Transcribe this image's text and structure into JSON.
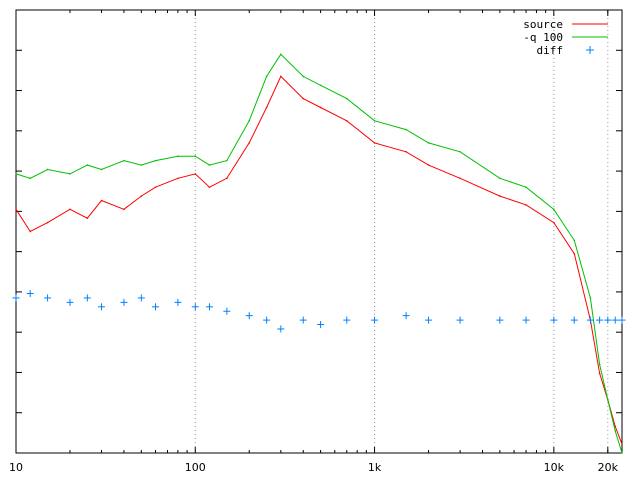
{
  "chart_data": {
    "type": "line",
    "x_scale": "log",
    "xlim": [
      10,
      24000
    ],
    "ylim": [
      0,
      1
    ],
    "grid": "vertical-dotted",
    "legend_position": "top-right",
    "x_ticks": [
      {
        "value": 10,
        "label": "10"
      },
      {
        "value": 100,
        "label": "100"
      },
      {
        "value": 1000,
        "label": "1k"
      },
      {
        "value": 10000,
        "label": "10k"
      },
      {
        "value": 20000,
        "label": "20k"
      }
    ],
    "colors": {
      "source": "#ff0000",
      "q100": "#00c000",
      "diff": "#0080ff"
    },
    "legend": [
      {
        "key": "source",
        "label": "source",
        "style": "line"
      },
      {
        "key": "q100",
        "label": "-q 100",
        "style": "line"
      },
      {
        "key": "diff",
        "label": "diff",
        "style": "point"
      }
    ],
    "series": [
      {
        "key": "source",
        "style": "line",
        "x": [
          10,
          12,
          15,
          20,
          25,
          30,
          40,
          50,
          60,
          80,
          100,
          120,
          150,
          200,
          250,
          300,
          400,
          500,
          700,
          1000,
          1500,
          2000,
          3000,
          5000,
          7000,
          10000,
          13000,
          16000,
          18000,
          20000,
          22000,
          24000
        ],
        "y": [
          0.55,
          0.5,
          0.52,
          0.55,
          0.53,
          0.57,
          0.55,
          0.58,
          0.6,
          0.62,
          0.63,
          0.6,
          0.62,
          0.7,
          0.78,
          0.85,
          0.8,
          0.78,
          0.75,
          0.7,
          0.68,
          0.65,
          0.62,
          0.58,
          0.56,
          0.52,
          0.45,
          0.3,
          0.18,
          0.12,
          0.06,
          0.02
        ]
      },
      {
        "key": "q100",
        "style": "line",
        "x": [
          10,
          12,
          15,
          20,
          25,
          30,
          40,
          50,
          60,
          80,
          100,
          120,
          150,
          200,
          250,
          300,
          400,
          500,
          700,
          1000,
          1500,
          2000,
          3000,
          5000,
          7000,
          10000,
          13000,
          16000,
          18000,
          20000,
          22000,
          24000
        ],
        "y": [
          0.63,
          0.62,
          0.64,
          0.63,
          0.65,
          0.64,
          0.66,
          0.65,
          0.66,
          0.67,
          0.67,
          0.65,
          0.66,
          0.75,
          0.85,
          0.9,
          0.85,
          0.83,
          0.8,
          0.75,
          0.73,
          0.7,
          0.68,
          0.62,
          0.6,
          0.55,
          0.48,
          0.35,
          0.2,
          0.12,
          0.05,
          0.0
        ]
      },
      {
        "key": "diff",
        "style": "point",
        "x": [
          10,
          12,
          15,
          20,
          25,
          30,
          40,
          50,
          60,
          80,
          100,
          120,
          150,
          200,
          250,
          300,
          400,
          500,
          700,
          1000,
          1500,
          2000,
          3000,
          5000,
          7000,
          10000,
          13000,
          16000,
          18000,
          20000,
          22000,
          24000
        ],
        "y": [
          0.35,
          0.36,
          0.35,
          0.34,
          0.35,
          0.33,
          0.34,
          0.35,
          0.33,
          0.34,
          0.33,
          0.33,
          0.32,
          0.31,
          0.3,
          0.28,
          0.3,
          0.29,
          0.3,
          0.3,
          0.31,
          0.3,
          0.3,
          0.3,
          0.3,
          0.3,
          0.3,
          0.3,
          0.3,
          0.3,
          0.3,
          0.3
        ]
      }
    ]
  }
}
